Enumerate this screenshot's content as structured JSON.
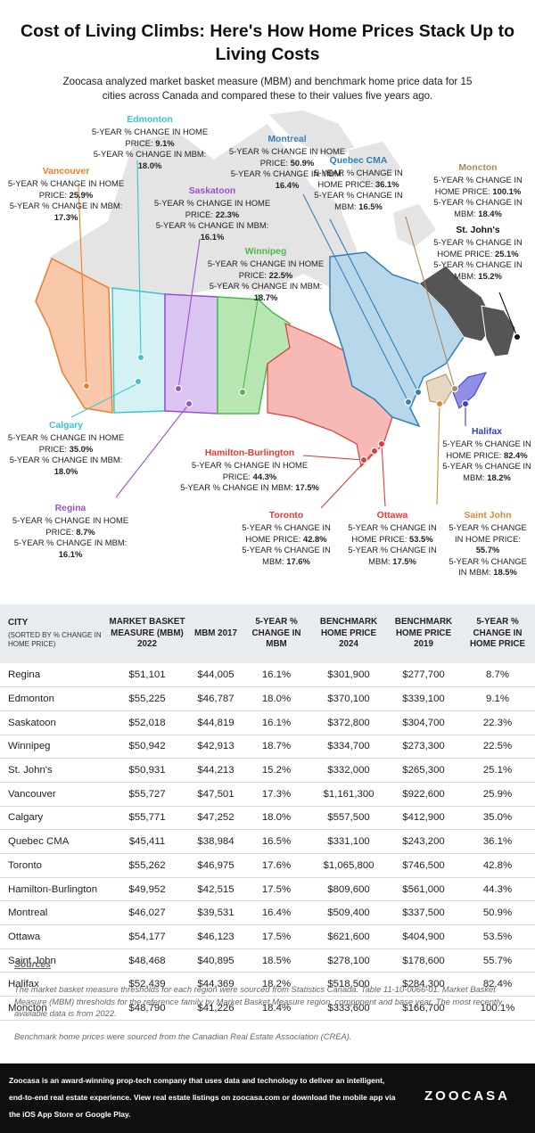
{
  "title": "Cost of Living Climbs: Here's How Home Prices Stack Up to Living Costs",
  "subtitle": "Zoocasa analyzed market basket measure (MBM) and benchmark home price data for 15 cities across Canada and compared these to their values five years ago.",
  "label_texts": {
    "price_prefix": "5-YEAR % CHANGE IN HOME PRICE:",
    "mbm_prefix": "5-YEAR % CHANGE IN MBM:"
  },
  "map_labels": [
    {
      "id": "edmonton",
      "name": "Edmonton",
      "price": "9.1%",
      "mbm": "18.0%",
      "color": "#3cc3cf"
    },
    {
      "id": "montreal",
      "name": "Montreal",
      "price": "50.9%",
      "mbm": "16.4%",
      "color": "#3b7fb5"
    },
    {
      "id": "vancouver",
      "name": "Vancouver",
      "price": "25.9%",
      "mbm": "17.3%",
      "color": "#f07c2a"
    },
    {
      "id": "saskatoon",
      "name": "Saskatoon",
      "price": "22.3%",
      "mbm": "16.1%",
      "color": "#9b4fd6"
    },
    {
      "id": "quebec",
      "name": "Quebec CMA",
      "price": "36.1%",
      "mbm": "16.5%",
      "color": "#2d7fb6"
    },
    {
      "id": "moncton",
      "name": "Moncton",
      "price": "100.1%",
      "mbm": "18.4%",
      "color": "#b0895a"
    },
    {
      "id": "stjohns",
      "name": "St. John's",
      "price": "25.1%",
      "mbm": "15.2%",
      "color": "#111111"
    },
    {
      "id": "winnipeg",
      "name": "Winnipeg",
      "price": "22.5%",
      "mbm": "18.7%",
      "color": "#4cb848"
    },
    {
      "id": "calgary",
      "name": "Calgary",
      "price": "35.0%",
      "mbm": "18.0%",
      "color": "#3cc3cf"
    },
    {
      "id": "hamilton",
      "name": "Hamilton-Burlington",
      "price": "44.3%",
      "mbm": "17.5%",
      "color": "#e03b3b"
    },
    {
      "id": "halifax",
      "name": "Halifax",
      "price": "82.4%",
      "mbm": "18.2%",
      "color": "#3a3ad6"
    },
    {
      "id": "regina",
      "name": "Regina",
      "price": "8.7%",
      "mbm": "16.1%",
      "color": "#9b4fd6"
    },
    {
      "id": "toronto",
      "name": "Toronto",
      "price": "42.8%",
      "mbm": "17.6%",
      "color": "#e03b3b"
    },
    {
      "id": "ottawa",
      "name": "Ottawa",
      "price": "53.5%",
      "mbm": "17.5%",
      "color": "#e03b3b"
    },
    {
      "id": "saintjohn",
      "name": "Saint John",
      "price": "55.7%",
      "mbm": "18.5%",
      "color": "#d68a3a"
    }
  ],
  "table": {
    "headers": {
      "city": "CITY",
      "city_sub": "(SORTED BY % CHANGE IN HOME PRICE)",
      "mbm2022": "MARKET BASKET MEASURE (MBM) 2022",
      "mbm2017": "MBM 2017",
      "mbm_change": "5-YEAR % CHANGE IN MBM",
      "price2024": "BENCHMARK HOME PRICE 2024",
      "price2019": "BENCHMARK HOME PRICE 2019",
      "price_change": "5-YEAR % CHANGE IN HOME PRICE"
    },
    "rows": [
      {
        "city": "Regina",
        "mbm2022": "$51,101",
        "mbm2017": "$44,005",
        "mbm_change": "16.1%",
        "price2024": "$301,900",
        "price2019": "$277,700",
        "price_change": "8.7%"
      },
      {
        "city": "Edmonton",
        "mbm2022": "$55,225",
        "mbm2017": "$46,787",
        "mbm_change": "18.0%",
        "price2024": "$370,100",
        "price2019": "$339,100",
        "price_change": "9.1%"
      },
      {
        "city": "Saskatoon",
        "mbm2022": "$52,018",
        "mbm2017": "$44,819",
        "mbm_change": "16.1%",
        "price2024": "$372,800",
        "price2019": "$304,700",
        "price_change": "22.3%"
      },
      {
        "city": "Winnipeg",
        "mbm2022": "$50,942",
        "mbm2017": "$42,913",
        "mbm_change": "18.7%",
        "price2024": "$334,700",
        "price2019": "$273,300",
        "price_change": "22.5%"
      },
      {
        "city": "St. John's",
        "mbm2022": "$50,931",
        "mbm2017": "$44,213",
        "mbm_change": "15.2%",
        "price2024": "$332,000",
        "price2019": "$265,300",
        "price_change": "25.1%"
      },
      {
        "city": "Vancouver",
        "mbm2022": "$55,727",
        "mbm2017": "$47,501",
        "mbm_change": "17.3%",
        "price2024": "$1,161,300",
        "price2019": "$922,600",
        "price_change": "25.9%"
      },
      {
        "city": "Calgary",
        "mbm2022": "$55,771",
        "mbm2017": "$47,252",
        "mbm_change": "18.0%",
        "price2024": "$557,500",
        "price2019": "$412,900",
        "price_change": "35.0%"
      },
      {
        "city": "Quebec CMA",
        "mbm2022": "$45,411",
        "mbm2017": "$38,984",
        "mbm_change": "16.5%",
        "price2024": "$331,100",
        "price2019": "$243,200",
        "price_change": "36.1%"
      },
      {
        "city": "Toronto",
        "mbm2022": "$55,262",
        "mbm2017": "$46,975",
        "mbm_change": "17.6%",
        "price2024": "$1,065,800",
        "price2019": "$746,500",
        "price_change": "42.8%"
      },
      {
        "city": "Hamilton-Burlington",
        "mbm2022": "$49,952",
        "mbm2017": "$42,515",
        "mbm_change": "17.5%",
        "price2024": "$809,600",
        "price2019": "$561,000",
        "price_change": "44.3%"
      },
      {
        "city": "Montreal",
        "mbm2022": "$46,027",
        "mbm2017": "$39,531",
        "mbm_change": "16.4%",
        "price2024": "$509,400",
        "price2019": "$337,500",
        "price_change": "50.9%"
      },
      {
        "city": "Ottawa",
        "mbm2022": "$54,177",
        "mbm2017": "$46,123",
        "mbm_change": "17.5%",
        "price2024": "$621,600",
        "price2019": "$404,900",
        "price_change": "53.5%"
      },
      {
        "city": "Saint John",
        "mbm2022": "$48,468",
        "mbm2017": "$40,895",
        "mbm_change": "18.5%",
        "price2024": "$278,100",
        "price2019": "$178,600",
        "price_change": "55.7%"
      },
      {
        "city": "Halifax",
        "mbm2022": "$52,439",
        "mbm2017": "$44,369",
        "mbm_change": "18.2%",
        "price2024": "$518,500",
        "price2019": "$284,300",
        "price_change": "82.4%"
      },
      {
        "city": "Moncton",
        "mbm2022": "$48,790",
        "mbm2017": "$41,226",
        "mbm_change": "18.4%",
        "price2024": "$333,600",
        "price2019": "$166,700",
        "price_change": "100.1%"
      }
    ]
  },
  "sources": {
    "heading": "Sources",
    "p1": "The market basket measure thresholds for each region were sourced from Statistics Canada. Table 11-10-0066-01. Market Basket Measure (MBM) thresholds for the reference family by Market Basket Measure region, component and base year. The most recently available data is from 2022.",
    "p2": "Benchmark home prices were sourced from the Canadian Real Estate Association (CREA)."
  },
  "footer": {
    "text": "Zoocasa is an award-winning prop-tech company that uses data and technology to deliver an intelligent, end-to-end real estate experience. View real estate listings on zoocasa.com or download the mobile app via the iOS App Store or Google Play.",
    "logo": "ZOOCASA"
  }
}
